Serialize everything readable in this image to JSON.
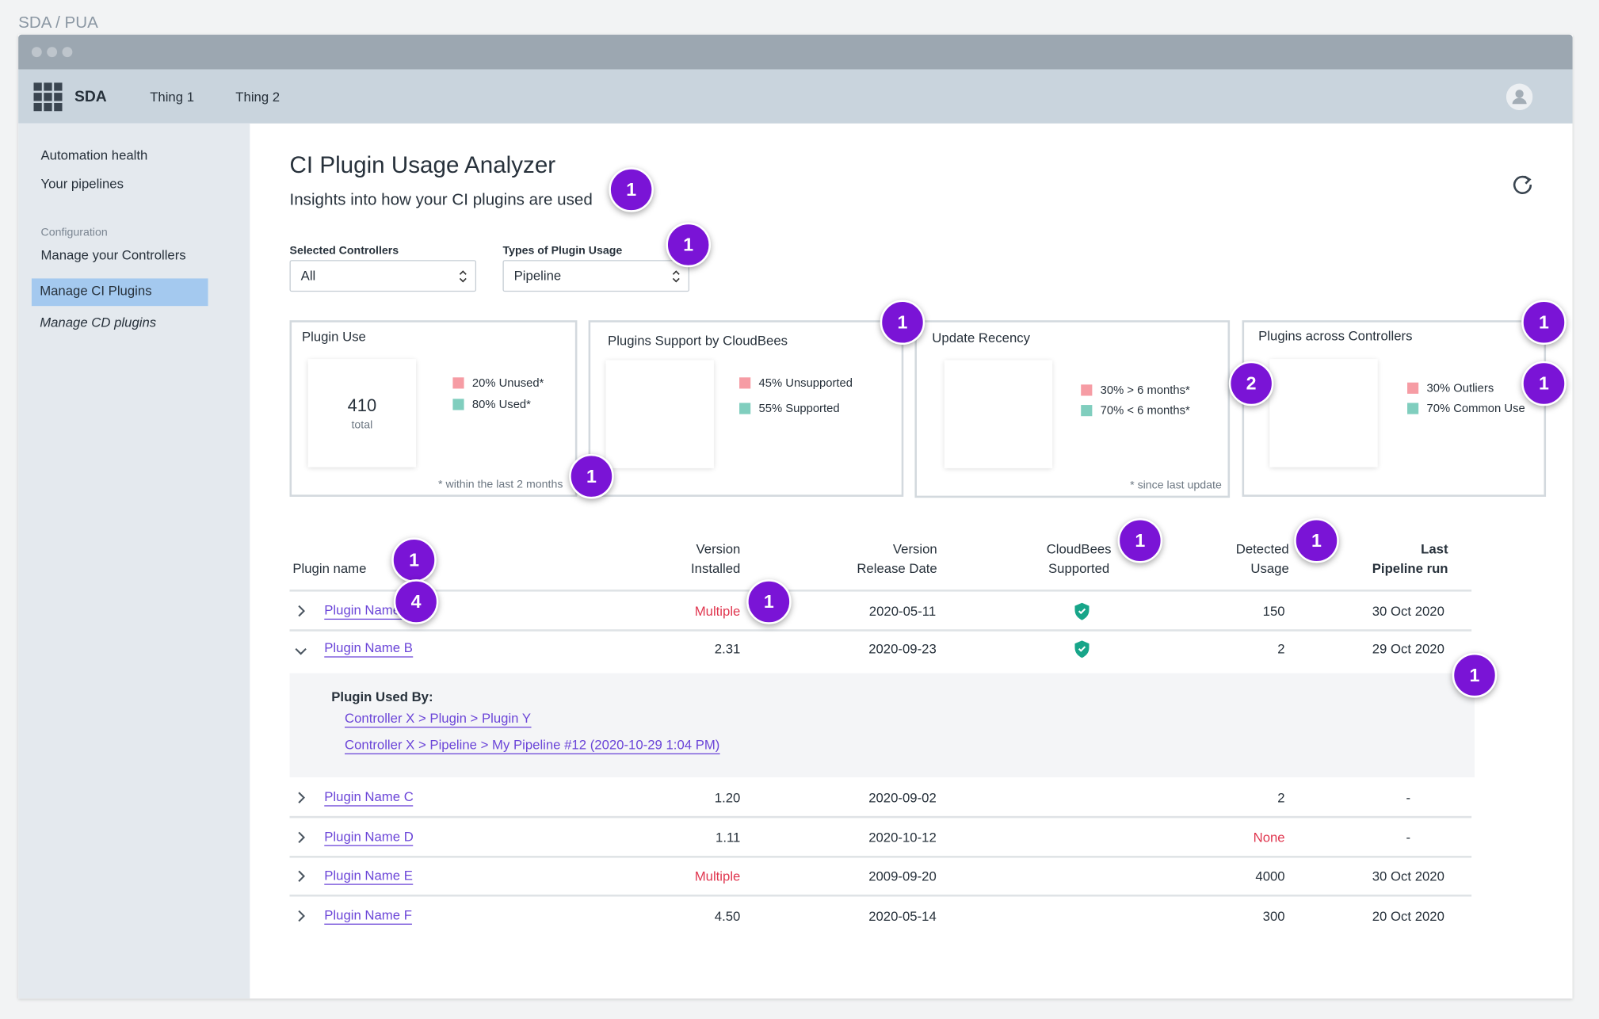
{
  "breadcrumb": "SDA / PUA",
  "nav": {
    "brand": "SDA",
    "items": [
      "Thing 1",
      "Thing 2"
    ]
  },
  "sidebar": {
    "items": [
      "Automation health",
      "Your pipelines"
    ],
    "section": "Configuration",
    "config_items": [
      "Manage your Controllers",
      "Manage CI Plugins",
      "Manage CD plugins"
    ]
  },
  "header": {
    "title": "CI Plugin Usage Analyzer",
    "subtitle": "Insights into how your CI plugins are used"
  },
  "filters": [
    {
      "label": "Selected Controllers",
      "value": "All"
    },
    {
      "label": "Types of Plugin Usage",
      "value": "Pipeline"
    }
  ],
  "cards": [
    {
      "title": "Plugin Use",
      "center_value": 410,
      "center_label": "total",
      "segments": [
        {
          "value": 20,
          "label": "20% Unused*",
          "color": "#ef4a5a"
        },
        {
          "value": 80,
          "label": "80% Used*",
          "color": "#17a589"
        }
      ],
      "footnote": "* within the last 2 months"
    },
    {
      "title": "Plugins Support by CloudBees",
      "segments": [
        {
          "value": 45,
          "label": "45% Unsupported",
          "color": "#ef4a5a"
        },
        {
          "value": 55,
          "label": "55% Supported",
          "color": "#17a589"
        }
      ]
    },
    {
      "title": "Update Recency",
      "segments": [
        {
          "value": 30,
          "label": "30% > 6 months*",
          "color": "#ef4a5a"
        },
        {
          "value": 70,
          "label": "70% < 6 months*",
          "color": "#17a589"
        }
      ],
      "footnote": "* since last update"
    },
    {
      "title": "Plugins across Controllers",
      "segments": [
        {
          "value": 30,
          "label": "30% Outliers",
          "color": "#ef4a5a"
        },
        {
          "value": 70,
          "label": "70% Common Use",
          "color": "#17a589"
        }
      ]
    }
  ],
  "table": {
    "columns": [
      [
        "Plugin name"
      ],
      [
        "Version",
        "Installed"
      ],
      [
        "Version",
        "Release Date"
      ],
      [
        "CloudBees",
        "Supported"
      ],
      [
        "Detected",
        "Usage"
      ],
      [
        "Last",
        "Pipeline run"
      ]
    ],
    "rows": [
      {
        "name": "Plugin Name A",
        "version": {
          "text": "Multiple",
          "color": "#e0364f"
        },
        "release_date": "2020-05-11",
        "supported": true,
        "usage": {
          "text": "150"
        },
        "last_run": "30 Oct 2020"
      },
      {
        "name": "Plugin Name B",
        "version": {
          "text": "2.31"
        },
        "release_date": "2020-09-23",
        "supported": true,
        "usage": {
          "text": "2"
        },
        "last_run": "29 Oct 2020",
        "used_by": {
          "title": "Plugin Used By:",
          "links": [
            "Controller X > Plugin > Plugin Y",
            "Controller X > Pipeline > My Pipeline #12 (2020-10-29 1:04 PM)"
          ]
        }
      },
      {
        "name": "Plugin Name C",
        "version": {
          "text": "1.20"
        },
        "release_date": "2020-09-02",
        "supported": false,
        "usage": {
          "text": "2"
        },
        "last_run": "-"
      },
      {
        "name": "Plugin Name D",
        "version": {
          "text": "1.11"
        },
        "release_date": "2020-10-12",
        "supported": false,
        "usage": {
          "text": "None",
          "color": "#e0364f"
        },
        "last_run": "-"
      },
      {
        "name": "Plugin Name E",
        "version": {
          "text": "Multiple",
          "color": "#e0364f"
        },
        "release_date": "2009-09-20",
        "supported": false,
        "usage": {
          "text": "4000"
        },
        "last_run": "30 Oct 2020"
      },
      {
        "name": "Plugin Name F",
        "version": {
          "text": "4.50"
        },
        "release_date": "2020-05-14",
        "supported": false,
        "usage": {
          "text": "300"
        },
        "last_run": "20 Oct 2020"
      }
    ]
  },
  "badges": [
    "1",
    "1",
    "1",
    "1",
    "2",
    "1",
    "1",
    "1",
    "4",
    "1",
    "1",
    "1",
    "1"
  ]
}
